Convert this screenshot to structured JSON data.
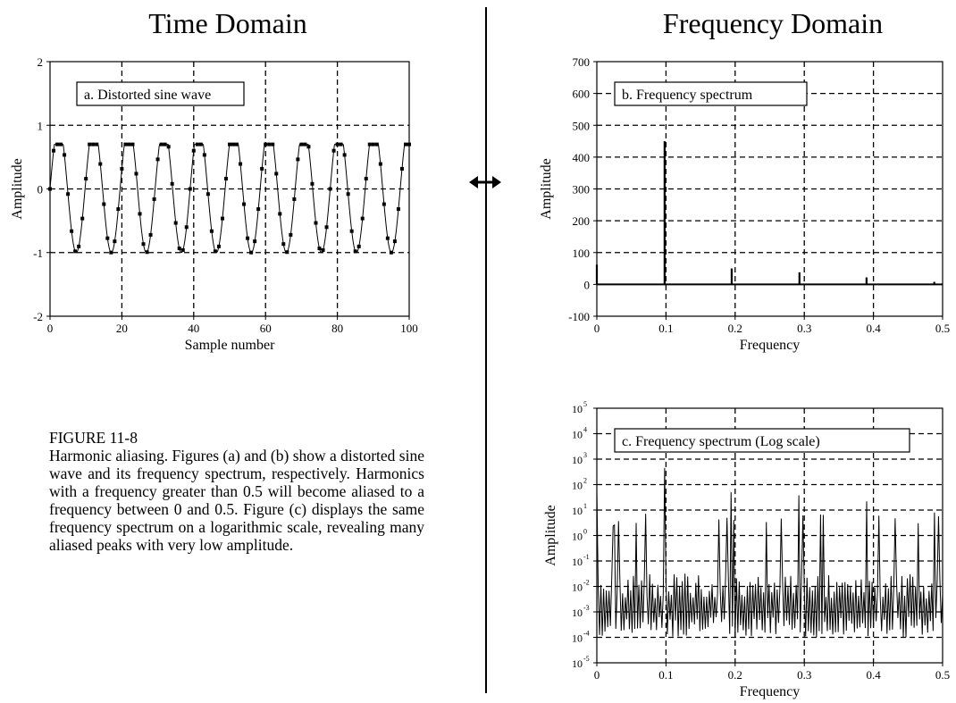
{
  "headings": {
    "time": "Time Domain",
    "frequency": "Frequency Domain"
  },
  "caption": {
    "title": "FIGURE 11-8",
    "body": "Harmonic aliasing. Figures (a) and (b) show a distorted sine wave and its frequency spectrum, respectively.  Harmonics with a frequency greater than 0.5 will become aliased to a frequency between 0 and 0.5. Figure (c) displays the same frequency spectrum on a logarithmic scale, revealing many aliased peaks with very low amplitude."
  },
  "chart_data": [
    {
      "id": "a",
      "type": "line",
      "title": "a.  Distorted sine wave",
      "xlabel": "Sample number",
      "ylabel": "Amplitude",
      "xlim": [
        0,
        100
      ],
      "ylim": [
        -2,
        2
      ],
      "xticks": [
        0,
        20,
        40,
        60,
        80,
        100
      ],
      "yticks": [
        -2,
        -1,
        0,
        1,
        2
      ],
      "xtick_labels": [
        "0",
        "20",
        "40",
        "60",
        "80",
        "100"
      ],
      "ytick_labels": [
        "-2",
        "-1",
        "0",
        "1",
        "2"
      ],
      "grid": true,
      "markers": true,
      "description_of_signal": "",
      "period": 9.75,
      "clip_level": 0.7,
      "min_level": -1
    },
    {
      "id": "b",
      "type": "line",
      "title": "b.  Frequency spectrum",
      "xlabel": "Frequency",
      "ylabel": "Amplitude",
      "xlim": [
        0,
        0.5
      ],
      "ylim": [
        -100,
        700
      ],
      "xticks": [
        0,
        0.1,
        0.2,
        0.3,
        0.4,
        0.5
      ],
      "yticks": [
        -100,
        0,
        100,
        200,
        300,
        400,
        500,
        600,
        700
      ],
      "xtick_labels": [
        "0",
        "0.1",
        "0.2",
        "0.3",
        "0.4",
        "0.5"
      ],
      "ytick_labels": [
        "-100",
        "0",
        "100",
        "200",
        "300",
        "400",
        "500",
        "600",
        "700"
      ],
      "grid": true,
      "peaks": [
        {
          "x": 0.0,
          "y": 62
        },
        {
          "x": 0.098,
          "y": 450
        },
        {
          "x": 0.195,
          "y": 50
        },
        {
          "x": 0.293,
          "y": 38
        },
        {
          "x": 0.39,
          "y": 22
        },
        {
          "x": 0.488,
          "y": 8
        }
      ]
    },
    {
      "id": "c",
      "type": "line",
      "title": "c.  Frequency spectrum (Log scale)",
      "xlabel": "Frequency",
      "ylabel": "Amplitude",
      "xlim": [
        0,
        0.5
      ],
      "ylim_log10": [
        -5,
        5
      ],
      "yscale": "log",
      "xticks": [
        0,
        0.1,
        0.2,
        0.3,
        0.4,
        0.5
      ],
      "xtick_labels": [
        "0",
        "0.1",
        "0.2",
        "0.3",
        "0.4",
        "0.5"
      ],
      "ytick_exponents": [
        "-5",
        "-4",
        "-3",
        "-2",
        "-1",
        "0",
        "1",
        "2",
        "3",
        "4",
        "5"
      ],
      "ytick_base": "10",
      "grid": true,
      "noise_floor_log10": [
        -4,
        -1.5
      ],
      "peaks": [
        {
          "x": 0.0,
          "y": 62
        },
        {
          "x": 0.098,
          "y": 450
        },
        {
          "x": 0.195,
          "y": 50
        },
        {
          "x": 0.293,
          "y": 38
        },
        {
          "x": 0.39,
          "y": 22
        },
        {
          "x": 0.488,
          "y": 8
        }
      ]
    }
  ]
}
